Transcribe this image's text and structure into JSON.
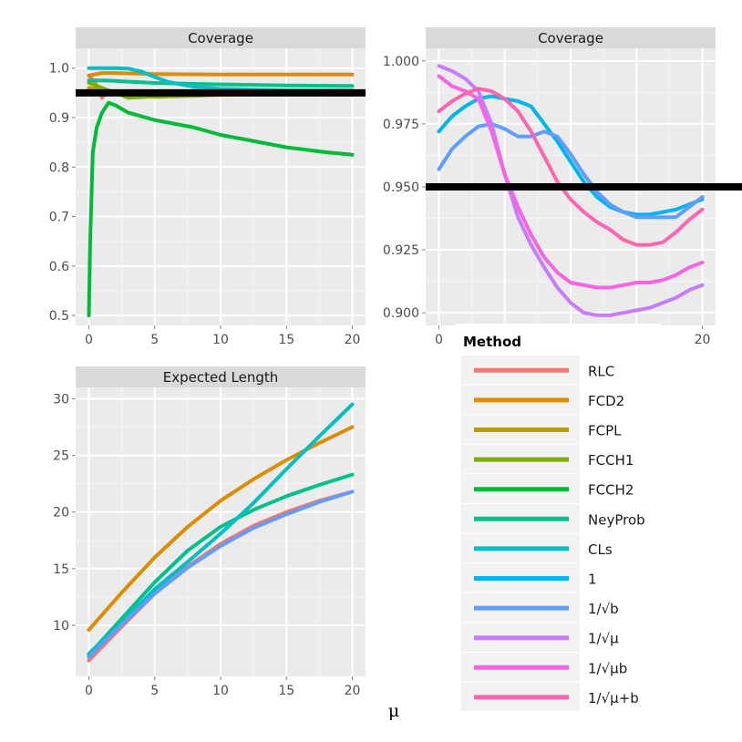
{
  "chart_data": [
    {
      "type": "line",
      "panel": "top-left",
      "title": "Coverage",
      "xlim": [
        -1,
        21
      ],
      "ylim": [
        0.48,
        1.04
      ],
      "xticks": [
        "0",
        "5",
        "10",
        "15",
        "20"
      ],
      "yticks": [
        "0.5",
        "0.6",
        "0.7",
        "0.8",
        "0.9",
        "1.0"
      ],
      "reference_line": 0.95,
      "series": [
        {
          "name": "RLC",
          "x": [
            0,
            0.5,
            1,
            1.5,
            2,
            3,
            5,
            10,
            15,
            20
          ],
          "y": [
            0.985,
            0.97,
            0.94,
            0.955,
            0.95,
            0.948,
            0.946,
            0.948,
            0.949,
            0.948
          ]
        },
        {
          "name": "FCD2",
          "x": [
            0,
            1,
            2,
            5,
            10,
            15,
            20
          ],
          "y": [
            0.985,
            0.99,
            0.99,
            0.988,
            0.987,
            0.987,
            0.987
          ]
        },
        {
          "name": "FCPL",
          "x": [
            0,
            1,
            2,
            3,
            5,
            8,
            10,
            15,
            20
          ],
          "y": [
            0.96,
            0.955,
            0.95,
            0.945,
            0.942,
            0.944,
            0.946,
            0.947,
            0.946
          ]
        },
        {
          "name": "FCCH1",
          "x": [
            0,
            1,
            2,
            3,
            5,
            8,
            10,
            15,
            20
          ],
          "y": [
            0.97,
            0.96,
            0.95,
            0.94,
            0.943,
            0.945,
            0.948,
            0.949,
            0.95
          ]
        },
        {
          "name": "FCCH2",
          "x": [
            0,
            0.1,
            0.3,
            0.6,
            1,
            1.5,
            2,
            3,
            5,
            8,
            10,
            12,
            15,
            18,
            20
          ],
          "y": [
            0.5,
            0.65,
            0.83,
            0.88,
            0.91,
            0.93,
            0.925,
            0.91,
            0.895,
            0.88,
            0.865,
            0.855,
            0.84,
            0.83,
            0.825
          ]
        },
        {
          "name": "NeyProb",
          "x": [
            0,
            1,
            2,
            5,
            10,
            15,
            20
          ],
          "y": [
            0.975,
            0.975,
            0.974,
            0.97,
            0.967,
            0.965,
            0.964
          ]
        },
        {
          "name": "CLs",
          "x": [
            0,
            1,
            2,
            3,
            4,
            5,
            6,
            8,
            10,
            15,
            20
          ],
          "y": [
            1.0,
            1.0,
            1.0,
            0.999,
            0.993,
            0.982,
            0.972,
            0.962,
            0.958,
            0.955,
            0.955
          ]
        }
      ]
    },
    {
      "type": "line",
      "panel": "top-right",
      "title": "Coverage",
      "xlim": [
        -1,
        21
      ],
      "ylim": [
        0.895,
        1.005
      ],
      "xticks": [
        "0",
        "20"
      ],
      "yticks": [
        "0.900",
        "0.925",
        "0.950",
        "0.975",
        "1.000"
      ],
      "reference_line": 0.95,
      "series": [
        {
          "name": "1",
          "x": [
            0,
            1,
            2,
            3,
            4,
            5,
            6,
            7,
            8,
            9,
            10,
            11,
            12,
            13,
            14,
            15,
            16,
            17,
            18,
            19,
            20
          ],
          "y": [
            0.972,
            0.978,
            0.982,
            0.985,
            0.986,
            0.985,
            0.984,
            0.982,
            0.975,
            0.968,
            0.96,
            0.952,
            0.946,
            0.942,
            0.94,
            0.939,
            0.939,
            0.94,
            0.941,
            0.943,
            0.945
          ]
        },
        {
          "name": "1/sqrt(b)",
          "x": [
            0,
            1,
            2,
            3,
            4,
            5,
            6,
            7,
            8,
            9,
            10,
            11,
            12,
            13,
            14,
            15,
            16,
            17,
            18,
            19,
            20
          ],
          "y": [
            0.957,
            0.965,
            0.97,
            0.974,
            0.975,
            0.973,
            0.97,
            0.97,
            0.972,
            0.97,
            0.963,
            0.955,
            0.948,
            0.943,
            0.94,
            0.938,
            0.938,
            0.938,
            0.938,
            0.942,
            0.946
          ]
        },
        {
          "name": "1/sqrt(mu)",
          "x": [
            0,
            1,
            2,
            3,
            4,
            5,
            6,
            7,
            8,
            9,
            10,
            11,
            12,
            13,
            14,
            15,
            16,
            17,
            18,
            19,
            20
          ],
          "y": [
            0.998,
            0.996,
            0.993,
            0.988,
            0.975,
            0.955,
            0.938,
            0.927,
            0.918,
            0.91,
            0.904,
            0.9,
            0.899,
            0.899,
            0.9,
            0.901,
            0.902,
            0.904,
            0.906,
            0.909,
            0.911
          ]
        },
        {
          "name": "1/sqrt(mu*b)",
          "x": [
            0,
            1,
            2,
            3,
            4,
            5,
            6,
            7,
            8,
            9,
            10,
            11,
            12,
            13,
            14,
            15,
            16,
            17,
            18,
            19,
            20
          ],
          "y": [
            0.994,
            0.99,
            0.988,
            0.985,
            0.972,
            0.955,
            0.942,
            0.931,
            0.922,
            0.916,
            0.912,
            0.911,
            0.91,
            0.91,
            0.911,
            0.912,
            0.912,
            0.913,
            0.915,
            0.918,
            0.92
          ]
        },
        {
          "name": "1/sqrt(mu+b)",
          "x": [
            0,
            1,
            2,
            3,
            4,
            5,
            6,
            7,
            8,
            9,
            10,
            11,
            12,
            13,
            14,
            15,
            16,
            17,
            18,
            19,
            20
          ],
          "y": [
            0.98,
            0.984,
            0.987,
            0.989,
            0.988,
            0.985,
            0.98,
            0.972,
            0.962,
            0.952,
            0.945,
            0.94,
            0.936,
            0.933,
            0.929,
            0.927,
            0.927,
            0.928,
            0.932,
            0.937,
            0.941
          ]
        }
      ]
    },
    {
      "type": "line",
      "panel": "bottom-left",
      "title": "Expected Length",
      "xlim": [
        -1,
        21
      ],
      "ylim": [
        5.5,
        31
      ],
      "xticks": [
        "0",
        "5",
        "10",
        "15",
        "20"
      ],
      "yticks": [
        "10",
        "15",
        "20",
        "25",
        "30"
      ],
      "series": [
        {
          "name": "RLC",
          "x": [
            0,
            2.5,
            5,
            7.5,
            10,
            12.5,
            15,
            17.5,
            20
          ],
          "y": [
            6.9,
            9.9,
            12.8,
            15.2,
            17.2,
            18.8,
            20.0,
            21.0,
            21.8
          ]
        },
        {
          "name": "FCD2",
          "x": [
            0,
            2.5,
            5,
            7.5,
            10,
            12.5,
            15,
            17.5,
            20
          ],
          "y": [
            9.6,
            12.9,
            16.0,
            18.7,
            21.0,
            22.9,
            24.6,
            26.1,
            27.5
          ]
        },
        {
          "name": "NeyProb",
          "x": [
            0,
            2.5,
            5,
            7.5,
            10,
            12.5,
            15,
            17.5,
            20
          ],
          "y": [
            7.4,
            10.6,
            13.8,
            16.6,
            18.7,
            20.2,
            21.4,
            22.4,
            23.3
          ]
        },
        {
          "name": "CLs",
          "x": [
            0,
            2.5,
            5,
            7.5,
            10,
            12.5,
            15,
            17.5,
            20
          ],
          "y": [
            7.5,
            10.2,
            13.2,
            15.6,
            18.1,
            20.8,
            23.8,
            26.7,
            29.5
          ]
        },
        {
          "name": "1/sqrt(b)",
          "x": [
            0,
            2.5,
            5,
            7.5,
            10,
            12.5,
            15,
            17.5,
            20
          ],
          "y": [
            7.2,
            10.1,
            12.8,
            15.1,
            17.0,
            18.6,
            19.8,
            20.9,
            21.8
          ]
        }
      ]
    }
  ],
  "legend": {
    "title": "Method",
    "entries": [
      {
        "key": "RLC",
        "label": "RLC",
        "color": "#F8766D"
      },
      {
        "key": "FCD2",
        "label": "FCD2",
        "color": "#DE8C00"
      },
      {
        "key": "FCPL",
        "label": "FCPL",
        "color": "#B79F00"
      },
      {
        "key": "FCCH1",
        "label": "FCCH1",
        "color": "#7CAE00"
      },
      {
        "key": "FCCH2",
        "label": "FCCH2",
        "color": "#00BA38"
      },
      {
        "key": "NeyProb",
        "label": "NeyProb",
        "color": "#00C08B"
      },
      {
        "key": "CLs",
        "label": "CLs",
        "color": "#00BFC4"
      },
      {
        "key": "1",
        "label": "1",
        "color": "#00B4F0"
      },
      {
        "key": "1/sqrt(b)",
        "label": "1/√b",
        "color": "#619CFF"
      },
      {
        "key": "1/sqrt(mu)",
        "label": "1/√μ",
        "color": "#C77CFF"
      },
      {
        "key": "1/sqrt(mu*b)",
        "label": "1/√μb",
        "color": "#F564E3"
      },
      {
        "key": "1/sqrt(mu+b)",
        "label": "1/√μ+b",
        "color": "#FF64B0"
      }
    ]
  },
  "x_axis_label": "μ",
  "colors": {
    "panel_bg": "#EBEBEB",
    "strip_bg": "#D9D9D9",
    "grid_major": "#FFFFFF",
    "reference_line": "#000000"
  }
}
